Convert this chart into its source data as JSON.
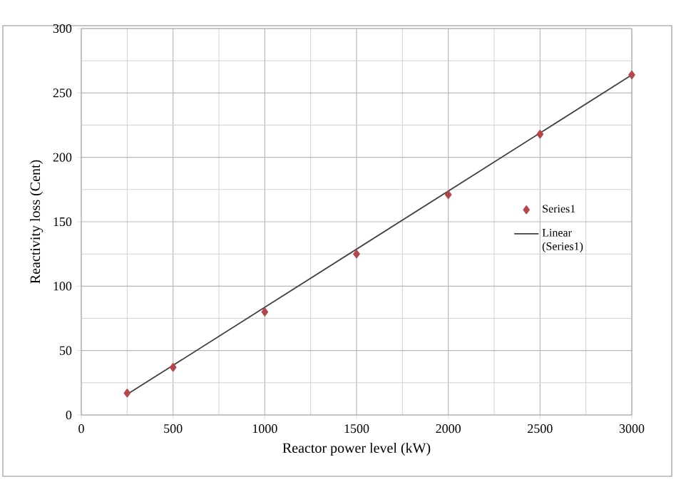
{
  "chart_data": {
    "type": "scatter",
    "xlabel": "Reactor power level (kW)",
    "ylabel": "Reactivity loss (Cent)",
    "x": [
      250,
      500,
      1000,
      1500,
      2000,
      2500,
      3000
    ],
    "series": [
      {
        "name": "Series1",
        "color": "#b5474b",
        "marker": "diamond",
        "values": [
          17,
          37,
          80,
          125,
          171,
          218,
          264
        ]
      },
      {
        "name": "Linear (Series1)",
        "type": "line",
        "color": "#404040",
        "marker": "none",
        "x": [
          250,
          3000
        ],
        "values": [
          16,
          264
        ]
      }
    ],
    "xlim": [
      0,
      3000
    ],
    "xticks": [
      0,
      500,
      1000,
      1500,
      2000,
      2500,
      3000
    ],
    "ylim": [
      0,
      300
    ],
    "yticks": [
      0,
      50,
      100,
      150,
      200,
      250,
      300
    ],
    "grid": true,
    "legend": "right"
  }
}
